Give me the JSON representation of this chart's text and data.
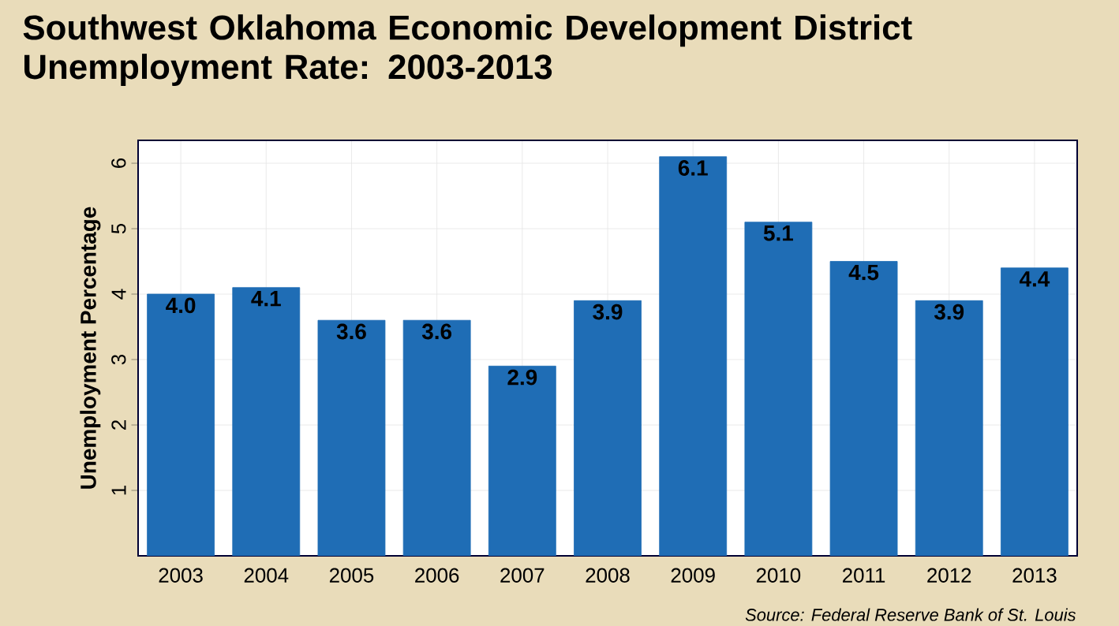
{
  "chart_data": {
    "type": "bar",
    "title": "Southwest Oklahoma Economic Development District Unemployment Rate: 2003-2013",
    "ylabel": "Unemployment Percentage",
    "categories": [
      "2003",
      "2004",
      "2005",
      "2006",
      "2007",
      "2008",
      "2009",
      "2010",
      "2011",
      "2012",
      "2013"
    ],
    "values": [
      4.0,
      4.1,
      3.6,
      3.6,
      2.9,
      3.9,
      6.1,
      5.1,
      4.5,
      3.9,
      4.4
    ],
    "value_labels": [
      "4.0",
      "4.1",
      "3.6",
      "3.6",
      "2.9",
      "3.9",
      "6.1",
      "5.1",
      "4.5",
      "3.9",
      "4.4"
    ],
    "color": "#1f6db5",
    "ylim": [
      0,
      6.35
    ],
    "yticks": [
      1,
      2,
      3,
      4,
      5,
      6
    ],
    "grid": true,
    "annotations": [
      "Source: Federal Reserve Bank of St. Louis"
    ]
  }
}
